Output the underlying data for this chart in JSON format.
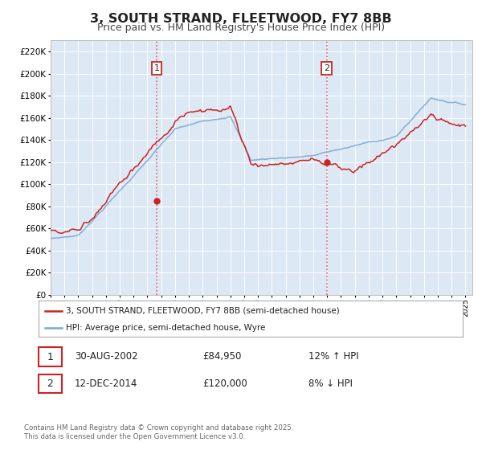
{
  "title": "3, SOUTH STRAND, FLEETWOOD, FY7 8BB",
  "subtitle": "Price paid vs. HM Land Registry's House Price Index (HPI)",
  "title_fontsize": 11.5,
  "subtitle_fontsize": 9,
  "background_color": "#ffffff",
  "plot_bg_color": "#dde8f5",
  "grid_color": "#ffffff",
  "ylim": [
    0,
    230000
  ],
  "yticks": [
    0,
    20000,
    40000,
    60000,
    80000,
    100000,
    120000,
    140000,
    160000,
    180000,
    200000,
    220000
  ],
  "hpi_color": "#7aa8d4",
  "price_color": "#cc2222",
  "vline_color": "#e06060",
  "sale1_x": 2002.664,
  "sale1_y": 84950,
  "sale2_x": 2014.956,
  "sale2_y": 120000,
  "legend_price_label": "3, SOUTH STRAND, FLEETWOOD, FY7 8BB (semi-detached house)",
  "legend_hpi_label": "HPI: Average price, semi-detached house, Wyre",
  "annotation1_num": "1",
  "annotation1_date": "30-AUG-2002",
  "annotation1_price": "£84,950",
  "annotation1_hpi": "12% ↑ HPI",
  "annotation2_num": "2",
  "annotation2_date": "12-DEC-2014",
  "annotation2_price": "£120,000",
  "annotation2_hpi": "8% ↓ HPI",
  "footnote": "Contains HM Land Registry data © Crown copyright and database right 2025.\nThis data is licensed under the Open Government Licence v3.0.",
  "xmin": 1995,
  "xmax": 2025.5
}
